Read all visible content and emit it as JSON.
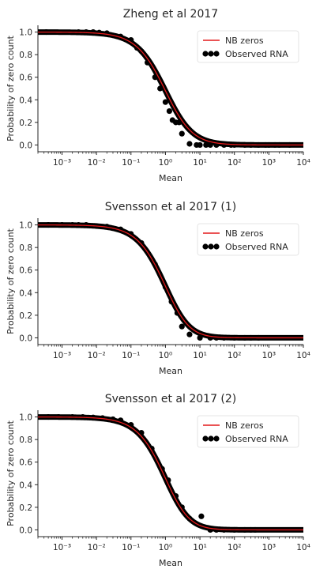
{
  "chart_data": [
    {
      "type": "scatter",
      "title": "Zheng et al 2017",
      "xlabel": "Mean",
      "ylabel": "Probability of zero count",
      "xscale": "log",
      "xlim": [
        0.0002,
        10000
      ],
      "ylim": [
        -0.06,
        1.06
      ],
      "xticks": [
        "10^-3",
        "10^-2",
        "10^-1",
        "10^0",
        "10^1",
        "10^2",
        "10^3",
        "10^4"
      ],
      "yticks": [
        "0.0",
        "0.2",
        "0.4",
        "0.6",
        "0.8",
        "1.0"
      ],
      "legend": {
        "placement": "top-right",
        "entries": [
          "NB zeros",
          "Observed RNA"
        ]
      },
      "line_color": "#e41a1c",
      "point_color": "#000000",
      "nb_dispersion": 0.8,
      "series": [
        {
          "name": "Observed RNA",
          "x": [
            0.00035,
            0.003,
            0.005,
            0.008,
            0.012,
            0.02,
            0.05,
            0.1,
            0.15,
            0.2,
            0.3,
            0.5,
            0.7,
            1.0,
            1.3,
            1.6,
            2.0,
            2.5,
            3,
            5,
            8,
            10,
            15,
            20,
            30,
            50,
            80,
            100,
            200,
            300,
            500,
            800,
            1000,
            1500,
            2000,
            4000
          ],
          "y": [
            1.0,
            1.0,
            1.0,
            1.0,
            0.995,
            0.99,
            0.96,
            0.93,
            0.86,
            0.83,
            0.73,
            0.6,
            0.5,
            0.38,
            0.3,
            0.22,
            0.2,
            0.2,
            0.1,
            0.01,
            0.0,
            0.0,
            0.0,
            0.0,
            0.0,
            0.0,
            0.0,
            0.0,
            0.0,
            0.0,
            0.0,
            0.0,
            0.0,
            0.0,
            0.0,
            0.0
          ]
        }
      ]
    },
    {
      "type": "scatter",
      "title": "Svensson et al 2017 (1)",
      "xlabel": "Mean",
      "ylabel": "Probability of zero count",
      "xscale": "log",
      "xlim": [
        0.0002,
        10000
      ],
      "ylim": [
        -0.06,
        1.06
      ],
      "xticks": [
        "10^-3",
        "10^-2",
        "10^-1",
        "10^0",
        "10^1",
        "10^2",
        "10^3",
        "10^4"
      ],
      "yticks": [
        "0.0",
        "0.2",
        "0.4",
        "0.6",
        "0.8",
        "1.0"
      ],
      "legend": {
        "placement": "top-right",
        "entries": [
          "NB zeros",
          "Observed RNA"
        ]
      },
      "line_color": "#e41a1c",
      "point_color": "#000000",
      "nb_dispersion": 0.6,
      "series": [
        {
          "name": "Observed RNA",
          "x": [
            0.0004,
            0.001,
            0.002,
            0.003,
            0.005,
            0.01,
            0.02,
            0.05,
            0.1,
            0.2,
            0.5,
            1.0,
            1.5,
            2.2,
            3,
            5,
            10,
            20,
            30,
            50,
            100,
            200,
            300,
            500
          ],
          "y": [
            1.0,
            1.0,
            1.0,
            1.0,
            1.0,
            0.99,
            0.985,
            0.96,
            0.92,
            0.84,
            0.65,
            0.45,
            0.32,
            0.22,
            0.1,
            0.03,
            0.0,
            0.0,
            0.0,
            0.0,
            0.0,
            0.0,
            0.0,
            0.0
          ]
        }
      ]
    },
    {
      "type": "scatter",
      "title": "Svensson et al 2017 (2)",
      "xlabel": "Mean",
      "ylabel": "Probability of zero count",
      "xscale": "log",
      "xlim": [
        0.0002,
        10000
      ],
      "ylim": [
        -0.06,
        1.06
      ],
      "xticks": [
        "10^-3",
        "10^-2",
        "10^-1",
        "10^0",
        "10^1",
        "10^2",
        "10^3",
        "10^4"
      ],
      "yticks": [
        "0.0",
        "0.2",
        "0.4",
        "0.6",
        "0.8",
        "1.0"
      ],
      "legend": {
        "placement": "top-right",
        "entries": [
          "NB zeros",
          "Observed RNA"
        ]
      },
      "line_color": "#e41a1c",
      "point_color": "#000000",
      "nb_dispersion": 0.6,
      "series": [
        {
          "name": "Observed RNA",
          "x": [
            0.0004,
            0.0008,
            0.002,
            0.004,
            0.008,
            0.015,
            0.03,
            0.05,
            0.1,
            0.2,
            0.4,
            0.8,
            1.2,
            2.0,
            3.0,
            5,
            11,
            20,
            30,
            50,
            100,
            200,
            300,
            400
          ],
          "y": [
            1.0,
            1.0,
            1.0,
            1.0,
            0.995,
            0.99,
            0.98,
            0.97,
            0.93,
            0.86,
            0.72,
            0.54,
            0.44,
            0.3,
            0.2,
            0.1,
            0.12,
            0.0,
            0.0,
            0.0,
            0.0,
            0.0,
            0.0,
            0.0
          ]
        }
      ]
    }
  ]
}
